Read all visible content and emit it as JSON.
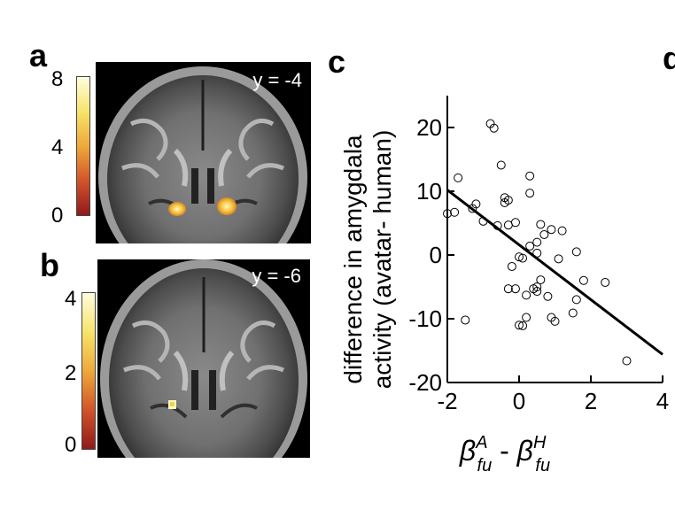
{
  "panels": {
    "a": {
      "letter": "a",
      "slice_label": "y = -4",
      "colorbar_ticks": [
        "8",
        "4",
        "0"
      ]
    },
    "b": {
      "letter": "b",
      "slice_label": "y = -6",
      "colorbar_ticks": [
        "4",
        "2",
        "0"
      ]
    },
    "c": {
      "letter": "c"
    },
    "d": {
      "letter": "d"
    }
  },
  "colors": {
    "brain_bg": "#000000",
    "activation_low": "#b52020",
    "activation_high": "#fff8c0"
  },
  "chart_data": {
    "type": "scatter",
    "ylabel_line1": "difference in amygdala",
    "ylabel_line2": "activity (avatar- human)",
    "xlabel": {
      "base": "β",
      "sup": "A",
      "sub": "fu",
      "sep": " - ",
      "base2": "β",
      "sup2": "H",
      "sub2": "fu"
    },
    "xlim": [
      -2,
      4
    ],
    "ylim": [
      -20,
      25
    ],
    "xticks": [
      "-2",
      "0",
      "2",
      "4"
    ],
    "yticks": [
      "20",
      "10",
      "0",
      "-10",
      "-20"
    ],
    "xtick_values": [
      -2,
      0,
      2,
      4
    ],
    "ytick_values": [
      20,
      10,
      0,
      -10,
      -20
    ],
    "points": [
      [
        -2.0,
        6.5
      ],
      [
        -1.8,
        6.7
      ],
      [
        -1.7,
        12.1
      ],
      [
        -1.5,
        -10.2
      ],
      [
        -1.3,
        7.3
      ],
      [
        -1.2,
        8.0
      ],
      [
        -1.0,
        5.3
      ],
      [
        -0.8,
        20.6
      ],
      [
        -0.7,
        19.9
      ],
      [
        -0.6,
        4.6
      ],
      [
        -0.5,
        14.1
      ],
      [
        -0.4,
        9.0
      ],
      [
        -0.4,
        8.2
      ],
      [
        -0.3,
        8.6
      ],
      [
        -0.3,
        4.7
      ],
      [
        -0.2,
        -1.8
      ],
      [
        -0.1,
        5.1
      ],
      [
        0.0,
        -0.3
      ],
      [
        0.0,
        -11.0
      ],
      [
        -0.1,
        -5.3
      ],
      [
        0.1,
        -0.5
      ],
      [
        0.1,
        -11.1
      ],
      [
        0.2,
        -9.8
      ],
      [
        0.3,
        12.4
      ],
      [
        0.3,
        9.7
      ],
      [
        0.3,
        1.4
      ],
      [
        0.4,
        -5.3
      ],
      [
        0.5,
        0.3
      ],
      [
        0.5,
        -5.0
      ],
      [
        0.5,
        -5.7
      ],
      [
        0.6,
        4.8
      ],
      [
        0.5,
        2.0
      ],
      [
        0.6,
        -3.9
      ],
      [
        0.7,
        3.2
      ],
      [
        0.8,
        -6.5
      ],
      [
        0.9,
        4.0
      ],
      [
        0.9,
        -9.8
      ],
      [
        1.0,
        -10.4
      ],
      [
        1.1,
        -0.6
      ],
      [
        1.2,
        3.8
      ],
      [
        1.5,
        -9.1
      ],
      [
        1.6,
        -7.0
      ],
      [
        1.6,
        0.5
      ],
      [
        1.8,
        -4.0
      ],
      [
        2.4,
        -4.3
      ],
      [
        3.0,
        -16.6
      ],
      [
        -0.3,
        -5.3
      ],
      [
        0.2,
        -6.3
      ]
    ],
    "fit_line": {
      "x": [
        -2,
        4
      ],
      "y": [
        10.2,
        -15.6
      ]
    },
    "grid": false,
    "legend": "none"
  }
}
